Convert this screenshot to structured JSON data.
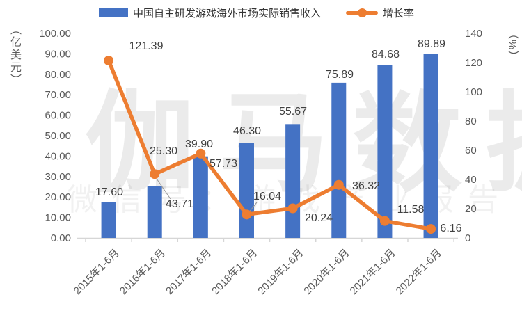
{
  "legend": {
    "bar_label": "中国自主研发游戏海外市场实际销售收入",
    "line_label": "增长率"
  },
  "axes": {
    "left_unit": "（亿美元）",
    "right_unit": "（%）",
    "left_ticks": [
      "100.00",
      "90.00",
      "80.00",
      "70.00",
      "60.00",
      "50.00",
      "40.00",
      "30.00",
      "20.00",
      "10.00",
      "0.00"
    ],
    "right_ticks": [
      "140",
      "120",
      "100",
      "80",
      "60",
      "40",
      "20",
      "0"
    ]
  },
  "watermark": {
    "title": "伽马数据",
    "subtitle": "微信号：游戏产业报告"
  },
  "colors": {
    "bar": "#4472C4",
    "line": "#ED7D31",
    "axis_line": "#d6d6d6",
    "leader_line": "#999999",
    "axis_text": "#595959",
    "label_text": "#3f3f3f"
  },
  "chart_data": {
    "type": "combo-bar-line",
    "categories": [
      "2015年1-6月",
      "2016年1-6月",
      "2017年1-6月",
      "2018年1-6月",
      "2019年1-6月",
      "2020年1-6月",
      "2021年1-6月",
      "2022年1-6月"
    ],
    "series": [
      {
        "name": "中国自主研发游戏海外市场实际销售收入",
        "type": "bar",
        "axis": "left",
        "unit": "亿美元",
        "values": [
          17.6,
          25.3,
          39.9,
          46.3,
          55.67,
          75.89,
          84.68,
          89.89
        ]
      },
      {
        "name": "增长率",
        "type": "line",
        "axis": "right",
        "unit": "%",
        "values": [
          121.39,
          43.71,
          57.73,
          16.04,
          20.24,
          36.32,
          11.58,
          6.16
        ]
      }
    ],
    "left_axis": {
      "min": 0,
      "max": 100,
      "step": 10,
      "label": "亿美元"
    },
    "right_axis": {
      "min": 0,
      "max": 140,
      "step": 20,
      "label": "%"
    },
    "grid": false,
    "legend_position": "top"
  }
}
